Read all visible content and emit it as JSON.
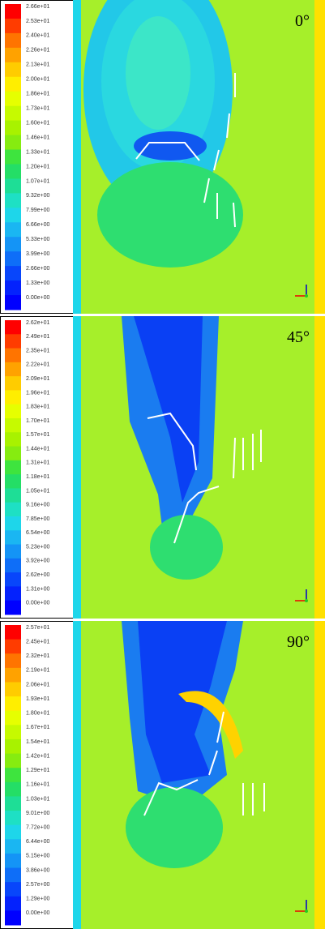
{
  "panels": [
    {
      "angle": "0°",
      "legend": [
        "2.66e+01",
        "2.53e+01",
        "2.40e+01",
        "2.26e+01",
        "2.13e+01",
        "2.00e+01",
        "1.86e+01",
        "1.73e+01",
        "1.60e+01",
        "1.46e+01",
        "1.33e+01",
        "1.20e+01",
        "1.07e+01",
        "9.32e+00",
        "7.99e+00",
        "6.66e+00",
        "5.33e+00",
        "3.99e+00",
        "2.66e+00",
        "1.33e+00",
        "0.00e+00"
      ]
    },
    {
      "angle": "45°",
      "legend": [
        "2.62e+01",
        "2.49e+01",
        "2.35e+01",
        "2.22e+01",
        "2.09e+01",
        "1.96e+01",
        "1.83e+01",
        "1.70e+01",
        "1.57e+01",
        "1.44e+01",
        "1.31e+01",
        "1.18e+01",
        "1.05e+01",
        "9.16e+00",
        "7.85e+00",
        "6.54e+00",
        "5.23e+00",
        "3.92e+00",
        "2.62e+00",
        "1.31e+00",
        "0.00e+00"
      ]
    },
    {
      "angle": "90°",
      "legend": [
        "2.57e+01",
        "2.45e+01",
        "2.32e+01",
        "2.19e+01",
        "2.06e+01",
        "1.93e+01",
        "1.80e+01",
        "1.67e+01",
        "1.54e+01",
        "1.42e+01",
        "1.29e+01",
        "1.16e+01",
        "1.03e+01",
        "9.01e+00",
        "7.72e+00",
        "6.44e+00",
        "5.15e+00",
        "3.86e+00",
        "2.57e+00",
        "1.29e+00",
        "0.00e+00"
      ]
    }
  ]
}
